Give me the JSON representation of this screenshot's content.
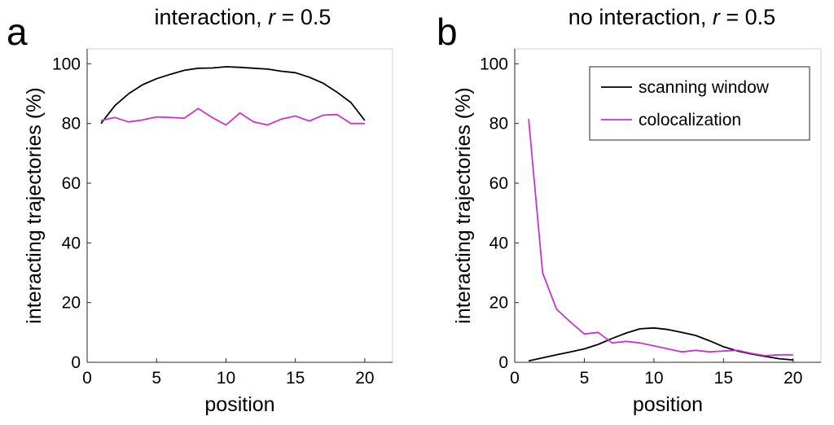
{
  "chart_data": [
    {
      "type": "line",
      "panel_label": "a",
      "title": "interaction, ",
      "title_var": "r",
      "title_suffix": " = 0.5",
      "xlabel": "position",
      "ylabel": "interacting trajectories (%)",
      "xlim": [
        0,
        22
      ],
      "ylim": [
        0,
        105
      ],
      "xticks": [
        0,
        5,
        10,
        15,
        20
      ],
      "yticks": [
        0,
        20,
        40,
        60,
        80,
        100
      ],
      "legend": null,
      "x": [
        1,
        2,
        3,
        4,
        5,
        6,
        7,
        8,
        9,
        10,
        11,
        12,
        13,
        14,
        15,
        16,
        17,
        18,
        19,
        20
      ],
      "series": [
        {
          "name": "scanning window",
          "color": "#000000",
          "values": [
            80,
            86,
            90,
            93,
            95,
            96.5,
            97.8,
            98.5,
            98.6,
            99,
            98.8,
            98.5,
            98.2,
            97.5,
            97,
            95.5,
            93.5,
            90.5,
            87,
            81
          ]
        },
        {
          "name": "colocalization",
          "color": "#cc33cc",
          "values": [
            81,
            82,
            80.5,
            81.2,
            82.2,
            82,
            81.8,
            85,
            82,
            79.5,
            83.5,
            80.5,
            79.5,
            81.5,
            82.5,
            80.8,
            82.8,
            83,
            80,
            80
          ]
        }
      ]
    },
    {
      "type": "line",
      "panel_label": "b",
      "title": "no interaction, ",
      "title_var": "r",
      "title_suffix": " = 0.5",
      "xlabel": "position",
      "ylabel": "interacting trajectories (%)",
      "xlim": [
        0,
        22
      ],
      "ylim": [
        0,
        105
      ],
      "xticks": [
        0,
        5,
        10,
        15,
        20
      ],
      "yticks": [
        0,
        20,
        40,
        60,
        80,
        100
      ],
      "legend": "top-right",
      "x": [
        1,
        2,
        3,
        4,
        5,
        6,
        7,
        8,
        9,
        10,
        11,
        12,
        13,
        14,
        15,
        16,
        17,
        18,
        19,
        20
      ],
      "series": [
        {
          "name": "scanning window",
          "color": "#000000",
          "values": [
            0.5,
            1.5,
            2.5,
            3.5,
            4.5,
            6,
            8,
            9.8,
            11.2,
            11.5,
            11,
            10,
            9,
            7.2,
            5.2,
            3.8,
            2.8,
            2,
            1.2,
            0.8
          ]
        },
        {
          "name": "colocalization",
          "color": "#cc33cc",
          "values": [
            81.5,
            30,
            17.8,
            13.5,
            9.5,
            10,
            6.5,
            7,
            6.5,
            5.5,
            4.5,
            3.5,
            4,
            3.5,
            3.8,
            4,
            3,
            2.2,
            2.5,
            2.5
          ]
        }
      ]
    }
  ]
}
